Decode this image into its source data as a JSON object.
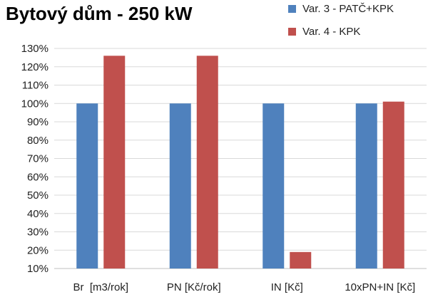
{
  "chart_data": {
    "type": "bar",
    "title": "Bytový dům - 250 kW",
    "categories": [
      "Br  [m3/rok]",
      "PN [Kč/rok]",
      "IN [Kč]",
      "10xPN+IN [Kč]"
    ],
    "series": [
      {
        "name": "Var. 3 - PATČ+KPK",
        "color": "#4f81bd",
        "values": [
          100,
          100,
          100,
          100
        ]
      },
      {
        "name": "Var. 4 - KPK",
        "color": "#c0504d",
        "values": [
          126,
          126,
          19,
          101
        ]
      }
    ],
    "y_ticks": [
      "10%",
      "20%",
      "30%",
      "40%",
      "50%",
      "60%",
      "70%",
      "80%",
      "90%",
      "100%",
      "110%",
      "120%",
      "130%"
    ],
    "ylim": [
      10,
      130
    ],
    "y_unit": "%",
    "grid": true,
    "legend_position": "top-right"
  }
}
